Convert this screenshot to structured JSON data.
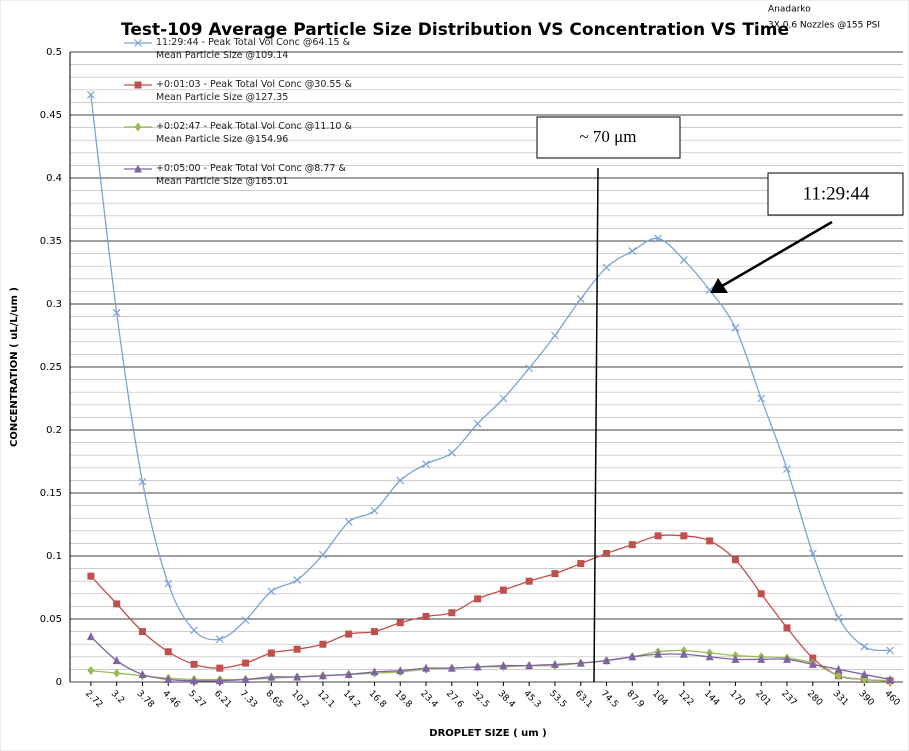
{
  "chart_data": {
    "type": "line",
    "title": "Test-109  Average Particle Size Distribution VS Concentration VS Time",
    "subtitle": [
      "Anadarko",
      "3X 0.6 Nozzles @155 PSI"
    ],
    "x_label": "DROPLET SIZE ( um )",
    "y_label": "CONCENTRATION ( uL/L/um )",
    "categories": [
      "2.72",
      "3.2",
      "3.78",
      "4.46",
      "5.27",
      "6.21",
      "7.33",
      "8.65",
      "10.2",
      "12.1",
      "14.2",
      "16.8",
      "19.8",
      "23.4",
      "27.6",
      "32.5",
      "38.4",
      "45.3",
      "53.5",
      "63.1",
      "74.5",
      "87.9",
      "104",
      "122",
      "144",
      "170",
      "201",
      "237",
      "280",
      "331",
      "390",
      "460"
    ],
    "series": [
      {
        "name": "11:29:44 - Peak Total Vol Conc @64.15 & Mean Particle Size @109.14",
        "color": "#7ba3d8",
        "marker": "x",
        "values": [
          0.466,
          0.293,
          0.159,
          0.078,
          0.041,
          0.034,
          0.049,
          0.072,
          0.081,
          0.101,
          0.127,
          0.136,
          0.16,
          0.173,
          0.182,
          0.205,
          0.225,
          0.249,
          0.275,
          0.304,
          0.329,
          0.342,
          0.352,
          0.335,
          0.311,
          0.281,
          0.225,
          0.169,
          0.102,
          0.051,
          0.028,
          0.025
        ]
      },
      {
        "name": "+0:01:03 - Peak Total Vol Conc @30.55 & Mean Particle Size @127.35",
        "color": "#c0504d",
        "marker": "square",
        "values": [
          0.084,
          0.062,
          0.04,
          0.024,
          0.014,
          0.011,
          0.015,
          0.023,
          0.026,
          0.03,
          0.038,
          0.04,
          0.047,
          0.052,
          0.055,
          0.066,
          0.073,
          0.08,
          0.086,
          0.094,
          0.102,
          0.109,
          0.116,
          0.116,
          0.112,
          0.097,
          0.07,
          0.043,
          0.019,
          0.005,
          0.002,
          0.001
        ]
      },
      {
        "name": "+0:02:47 - Peak Total Vol Conc @11.10 & Mean Particle Size @154.96",
        "color": "#9bbb59",
        "marker": "diamond",
        "values": [
          0.009,
          0.007,
          0.005,
          0.003,
          0.002,
          0.002,
          0.002,
          0.003,
          0.004,
          0.005,
          0.006,
          0.007,
          0.008,
          0.01,
          0.011,
          0.012,
          0.012,
          0.013,
          0.013,
          0.015,
          0.017,
          0.02,
          0.024,
          0.025,
          0.023,
          0.021,
          0.02,
          0.019,
          0.015,
          0.005,
          0.002,
          0.001
        ]
      },
      {
        "name": "+0:05:00 - Peak Total Vol Conc @8.77 & Mean Particle Size @165.01",
        "color": "#8064a2",
        "marker": "triangle",
        "values": [
          0.036,
          0.017,
          0.006,
          0.002,
          0.001,
          0.001,
          0.002,
          0.004,
          0.004,
          0.005,
          0.006,
          0.008,
          0.009,
          0.011,
          0.011,
          0.012,
          0.013,
          0.013,
          0.014,
          0.015,
          0.017,
          0.02,
          0.022,
          0.022,
          0.02,
          0.018,
          0.018,
          0.018,
          0.014,
          0.01,
          0.006,
          0.002
        ]
      }
    ],
    "ylim": [
      0,
      0.5
    ],
    "yticks": [
      0,
      0.05,
      0.1,
      0.15,
      0.2,
      0.25,
      0.3,
      0.35,
      0.4,
      0.45,
      0.5
    ],
    "yminorticks": [
      0.01,
      0.02,
      0.03,
      0.04,
      0.06,
      0.07,
      0.08,
      0.09,
      0.11,
      0.12,
      0.13,
      0.14,
      0.16,
      0.17,
      0.18,
      0.19,
      0.21,
      0.22,
      0.23,
      0.24,
      0.26,
      0.27,
      0.28,
      0.29,
      0.31,
      0.32,
      0.33,
      0.34,
      0.36,
      0.37,
      0.38,
      0.39,
      0.41,
      0.42,
      0.43,
      0.44,
      0.46,
      0.47,
      0.48,
      0.49
    ],
    "grid": true,
    "legend": "top-left",
    "annotations": [
      "~ 70 μm",
      "11:29:44"
    ]
  }
}
